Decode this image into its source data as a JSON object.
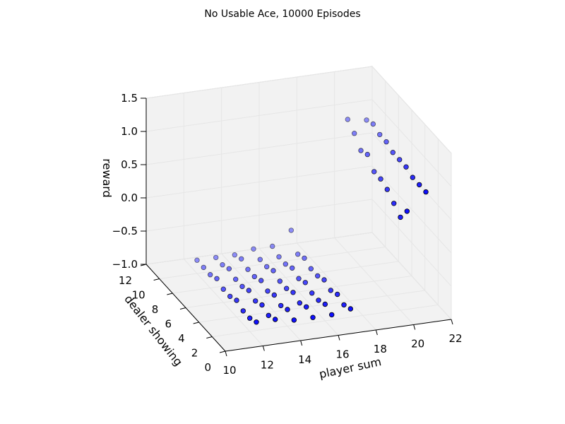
{
  "chart_data": {
    "type": "scatter3d",
    "title": "No Usable Ace, 10000 Episodes",
    "xlabel": "player sum",
    "ylabel": "dealer showing",
    "zlabel": "reward",
    "xlim": [
      10,
      22
    ],
    "ylim": [
      0,
      12
    ],
    "zlim": [
      -1.0,
      1.5
    ],
    "xticks": [
      "10",
      "12",
      "14",
      "16",
      "18",
      "20",
      "22"
    ],
    "yticks": [
      "0",
      "2",
      "4",
      "6",
      "8",
      "10",
      "12"
    ],
    "zticks": [
      "−1.0",
      "−0.5",
      "0.0",
      "0.5",
      "1.0",
      "1.5"
    ],
    "grid": true,
    "marker_color": "#0000ff",
    "pane_color": "#f2f2f2",
    "points": [
      [
        12,
        1,
        -0.75
      ],
      [
        12,
        2,
        -0.8
      ],
      [
        12,
        3,
        -0.8
      ],
      [
        12,
        4,
        -0.75
      ],
      [
        12,
        5,
        -0.8
      ],
      [
        12,
        6,
        -0.8
      ],
      [
        12,
        7,
        -0.75
      ],
      [
        12,
        8,
        -0.8
      ],
      [
        12,
        9,
        -0.8
      ],
      [
        12,
        10,
        -0.8
      ],
      [
        13,
        1,
        -0.75
      ],
      [
        13,
        2,
        -0.8
      ],
      [
        13,
        3,
        -0.75
      ],
      [
        13,
        4,
        -0.8
      ],
      [
        13,
        5,
        -0.75
      ],
      [
        13,
        6,
        -0.8
      ],
      [
        13,
        7,
        -0.8
      ],
      [
        13,
        8,
        -0.75
      ],
      [
        13,
        9,
        -0.8
      ],
      [
        13,
        10,
        -0.8
      ],
      [
        14,
        1,
        -0.8
      ],
      [
        14,
        2,
        -0.75
      ],
      [
        14,
        3,
        -0.8
      ],
      [
        14,
        4,
        -0.75
      ],
      [
        14,
        5,
        -0.8
      ],
      [
        14,
        6,
        -0.75
      ],
      [
        14,
        7,
        -0.8
      ],
      [
        14,
        8,
        -0.8
      ],
      [
        14,
        9,
        -0.75
      ],
      [
        14,
        10,
        -0.8
      ],
      [
        15,
        1,
        -0.8
      ],
      [
        15,
        2,
        -0.75
      ],
      [
        15,
        3,
        -0.8
      ],
      [
        15,
        4,
        -0.75
      ],
      [
        15,
        5,
        -0.8
      ],
      [
        15,
        6,
        -0.8
      ],
      [
        15,
        7,
        -0.75
      ],
      [
        15,
        8,
        -0.8
      ],
      [
        15,
        9,
        -0.8
      ],
      [
        15,
        10,
        -0.75
      ],
      [
        16,
        1,
        -0.8
      ],
      [
        16,
        2,
        -0.75
      ],
      [
        16,
        3,
        -0.8
      ],
      [
        16,
        4,
        -0.8
      ],
      [
        16,
        5,
        -0.75
      ],
      [
        16,
        6,
        -0.8
      ],
      [
        16,
        7,
        -0.75
      ],
      [
        16,
        8,
        -0.8
      ],
      [
        16,
        9,
        -0.8
      ],
      [
        16,
        10,
        -0.75
      ],
      [
        17,
        1,
        -0.75
      ],
      [
        17,
        2,
        -0.8
      ],
      [
        17,
        3,
        -0.75
      ],
      [
        17,
        4,
        -0.8
      ],
      [
        17,
        5,
        -0.75
      ],
      [
        17,
        6,
        -0.8
      ],
      [
        17,
        7,
        -0.8
      ],
      [
        17,
        8,
        -0.75
      ],
      [
        17,
        9,
        -0.8
      ],
      [
        17,
        10,
        -0.55
      ],
      [
        20,
        1,
        0.6
      ],
      [
        20,
        2,
        0.4
      ],
      [
        20,
        3,
        0.5
      ],
      [
        20,
        4,
        0.6
      ],
      [
        20,
        5,
        0.65
      ],
      [
        20,
        6,
        0.65
      ],
      [
        20,
        7,
        0.8
      ],
      [
        20,
        8,
        0.75
      ],
      [
        20,
        9,
        0.9
      ],
      [
        20,
        10,
        1.0
      ],
      [
        21,
        1,
        0.85
      ],
      [
        21,
        2,
        0.85
      ],
      [
        21,
        3,
        0.85
      ],
      [
        21,
        4,
        0.9
      ],
      [
        21,
        5,
        0.9
      ],
      [
        21,
        6,
        0.9
      ],
      [
        21,
        7,
        0.95
      ],
      [
        21,
        8,
        0.95
      ],
      [
        21,
        9,
        1.0
      ],
      [
        21,
        10,
        0.95
      ]
    ]
  }
}
